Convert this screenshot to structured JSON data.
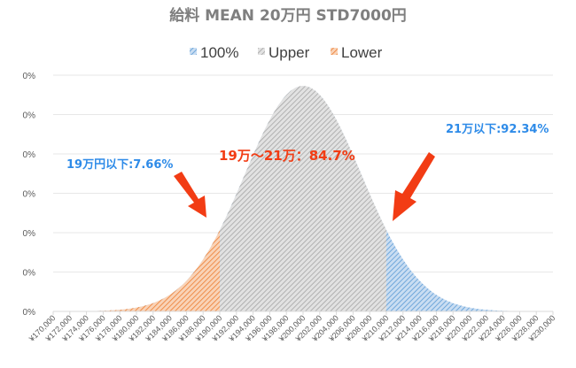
{
  "chart_data": {
    "type": "area",
    "title": "給料 MEAN 20万円 STD7000円",
    "legend": {
      "placement": "top",
      "entries": [
        {
          "name": "100%",
          "color": "#5b9bd5"
        },
        {
          "name": "Upper",
          "color": "#a5a5a5"
        },
        {
          "name": "Lower",
          "color": "#ed7d31"
        }
      ]
    },
    "mean": 200000,
    "std": 7000,
    "xlim": [
      170000,
      230000
    ],
    "lower_bound": 190000,
    "upper_bound": 210000,
    "x_tick_labels": [
      "¥170,000",
      "¥172,000",
      "¥174,000",
      "¥176,000",
      "¥178,000",
      "¥180,000",
      "¥182,000",
      "¥184,000",
      "¥186,000",
      "¥188,000",
      "¥190,000",
      "¥192,000",
      "¥194,000",
      "¥196,000",
      "¥198,000",
      "¥200,000",
      "¥202,000",
      "¥204,000",
      "¥206,000",
      "¥208,000",
      "¥210,000",
      "¥212,000",
      "¥214,000",
      "¥216,000",
      "¥218,000",
      "¥220,000",
      "¥222,000",
      "¥224,000",
      "¥226,000",
      "¥228,000",
      "¥230,000"
    ],
    "y_tick_labels": [
      "0%",
      "0%",
      "0%",
      "0%",
      "0%",
      "0%",
      "0%"
    ],
    "grid": true,
    "annotations": {
      "lower": "19万円以下:7.66%",
      "middle": "19万〜21万：84.7%",
      "upper": "21万以下:92.34%"
    }
  }
}
